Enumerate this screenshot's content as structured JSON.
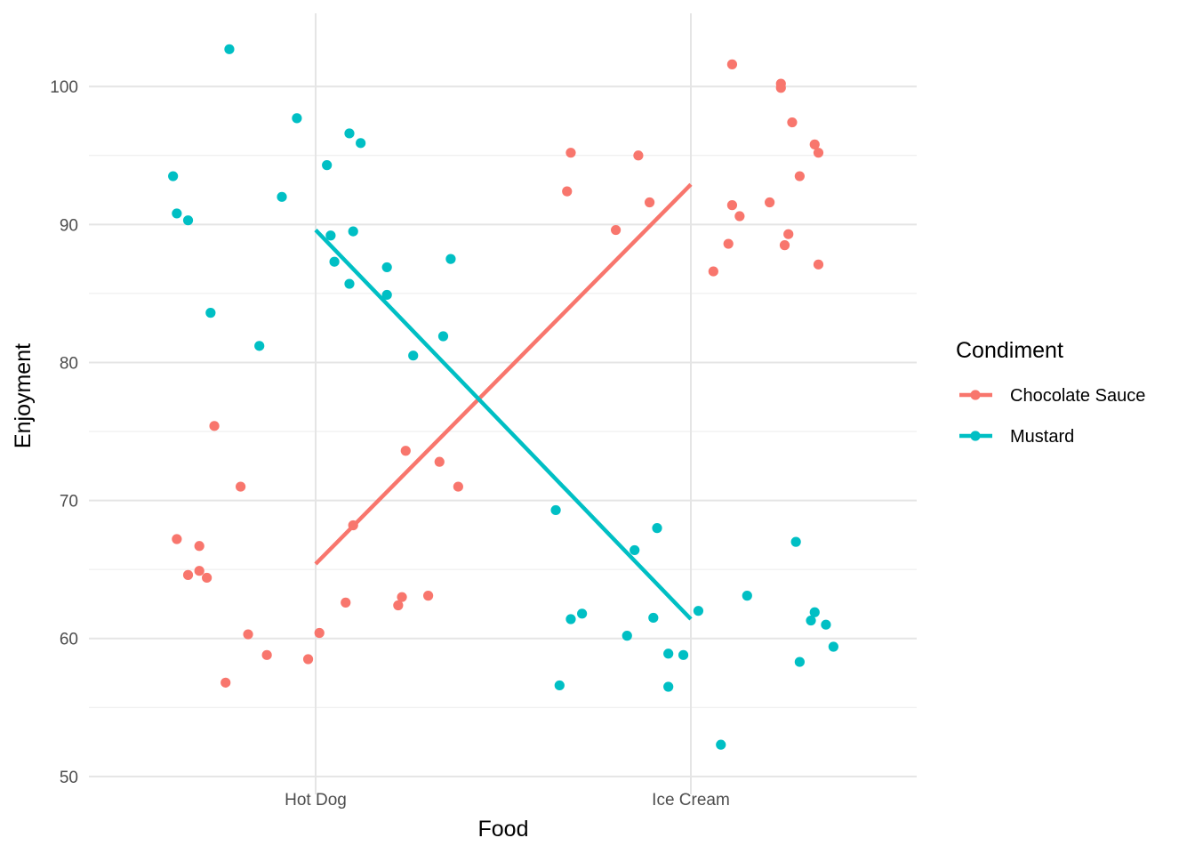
{
  "chart_data": {
    "type": "scatter",
    "xlabel": "Food",
    "ylabel": "Enjoyment",
    "categories": [
      "Hot Dog",
      "Ice Cream"
    ],
    "ylim": [
      48.7,
      105.3
    ],
    "y_ticks": [
      50,
      60,
      70,
      80,
      90,
      100
    ],
    "grid": true,
    "legend": {
      "title": "Condiment",
      "placement": "right"
    },
    "series": [
      {
        "name": "Chocolate Sauce",
        "color": "#F8766D",
        "trend": [
          65.4,
          92.9
        ],
        "points": [
          {
            "x": "Hot Dog",
            "jitter": -0.37,
            "y": 67.2
          },
          {
            "x": "Hot Dog",
            "jitter": -0.34,
            "y": 64.6
          },
          {
            "x": "Hot Dog",
            "jitter": -0.31,
            "y": 66.7
          },
          {
            "x": "Hot Dog",
            "jitter": -0.31,
            "y": 64.9
          },
          {
            "x": "Hot Dog",
            "jitter": -0.29,
            "y": 64.4
          },
          {
            "x": "Hot Dog",
            "jitter": -0.27,
            "y": 75.4
          },
          {
            "x": "Hot Dog",
            "jitter": -0.24,
            "y": 56.8
          },
          {
            "x": "Hot Dog",
            "jitter": -0.2,
            "y": 71.0
          },
          {
            "x": "Hot Dog",
            "jitter": -0.18,
            "y": 60.3
          },
          {
            "x": "Hot Dog",
            "jitter": -0.13,
            "y": 58.8
          },
          {
            "x": "Hot Dog",
            "jitter": -0.02,
            "y": 58.5
          },
          {
            "x": "Hot Dog",
            "jitter": 0.01,
            "y": 60.4
          },
          {
            "x": "Hot Dog",
            "jitter": 0.08,
            "y": 62.6
          },
          {
            "x": "Hot Dog",
            "jitter": 0.1,
            "y": 68.2
          },
          {
            "x": "Hot Dog",
            "jitter": 0.22,
            "y": 62.4
          },
          {
            "x": "Hot Dog",
            "jitter": 0.23,
            "y": 63.0
          },
          {
            "x": "Hot Dog",
            "jitter": 0.24,
            "y": 73.6
          },
          {
            "x": "Hot Dog",
            "jitter": 0.3,
            "y": 63.1
          },
          {
            "x": "Hot Dog",
            "jitter": 0.33,
            "y": 72.8
          },
          {
            "x": "Hot Dog",
            "jitter": 0.38,
            "y": 71.0
          },
          {
            "x": "Ice Cream",
            "jitter": -0.33,
            "y": 92.4
          },
          {
            "x": "Ice Cream",
            "jitter": -0.32,
            "y": 95.2
          },
          {
            "x": "Ice Cream",
            "jitter": -0.2,
            "y": 89.6
          },
          {
            "x": "Ice Cream",
            "jitter": -0.14,
            "y": 95.0
          },
          {
            "x": "Ice Cream",
            "jitter": -0.11,
            "y": 91.6
          },
          {
            "x": "Ice Cream",
            "jitter": 0.06,
            "y": 86.6
          },
          {
            "x": "Ice Cream",
            "jitter": 0.1,
            "y": 88.6
          },
          {
            "x": "Ice Cream",
            "jitter": 0.11,
            "y": 101.6
          },
          {
            "x": "Ice Cream",
            "jitter": 0.11,
            "y": 91.4
          },
          {
            "x": "Ice Cream",
            "jitter": 0.13,
            "y": 90.6
          },
          {
            "x": "Ice Cream",
            "jitter": 0.21,
            "y": 91.6
          },
          {
            "x": "Ice Cream",
            "jitter": 0.24,
            "y": 100.2
          },
          {
            "x": "Ice Cream",
            "jitter": 0.24,
            "y": 99.9
          },
          {
            "x": "Ice Cream",
            "jitter": 0.25,
            "y": 88.5
          },
          {
            "x": "Ice Cream",
            "jitter": 0.26,
            "y": 89.3
          },
          {
            "x": "Ice Cream",
            "jitter": 0.27,
            "y": 97.4
          },
          {
            "x": "Ice Cream",
            "jitter": 0.29,
            "y": 93.5
          },
          {
            "x": "Ice Cream",
            "jitter": 0.33,
            "y": 95.8
          },
          {
            "x": "Ice Cream",
            "jitter": 0.34,
            "y": 87.1
          },
          {
            "x": "Ice Cream",
            "jitter": 0.34,
            "y": 95.2
          }
        ]
      },
      {
        "name": "Mustard",
        "color": "#00BFC4",
        "trend": [
          89.6,
          61.4
        ],
        "points": [
          {
            "x": "Hot Dog",
            "jitter": -0.38,
            "y": 93.5
          },
          {
            "x": "Hot Dog",
            "jitter": -0.37,
            "y": 90.8
          },
          {
            "x": "Hot Dog",
            "jitter": -0.34,
            "y": 90.3
          },
          {
            "x": "Hot Dog",
            "jitter": -0.28,
            "y": 83.6
          },
          {
            "x": "Hot Dog",
            "jitter": -0.23,
            "y": 102.7
          },
          {
            "x": "Hot Dog",
            "jitter": -0.15,
            "y": 81.2
          },
          {
            "x": "Hot Dog",
            "jitter": -0.09,
            "y": 92.0
          },
          {
            "x": "Hot Dog",
            "jitter": -0.05,
            "y": 97.7
          },
          {
            "x": "Hot Dog",
            "jitter": 0.03,
            "y": 94.3
          },
          {
            "x": "Hot Dog",
            "jitter": 0.04,
            "y": 89.2
          },
          {
            "x": "Hot Dog",
            "jitter": 0.05,
            "y": 87.3
          },
          {
            "x": "Hot Dog",
            "jitter": 0.09,
            "y": 85.7
          },
          {
            "x": "Hot Dog",
            "jitter": 0.09,
            "y": 96.6
          },
          {
            "x": "Hot Dog",
            "jitter": 0.1,
            "y": 89.5
          },
          {
            "x": "Hot Dog",
            "jitter": 0.12,
            "y": 95.9
          },
          {
            "x": "Hot Dog",
            "jitter": 0.19,
            "y": 86.9
          },
          {
            "x": "Hot Dog",
            "jitter": 0.19,
            "y": 84.9
          },
          {
            "x": "Hot Dog",
            "jitter": 0.26,
            "y": 80.5
          },
          {
            "x": "Hot Dog",
            "jitter": 0.34,
            "y": 81.9
          },
          {
            "x": "Hot Dog",
            "jitter": 0.36,
            "y": 87.5
          },
          {
            "x": "Ice Cream",
            "jitter": -0.36,
            "y": 69.3
          },
          {
            "x": "Ice Cream",
            "jitter": -0.35,
            "y": 56.6
          },
          {
            "x": "Ice Cream",
            "jitter": -0.32,
            "y": 61.4
          },
          {
            "x": "Ice Cream",
            "jitter": -0.29,
            "y": 61.8
          },
          {
            "x": "Ice Cream",
            "jitter": -0.17,
            "y": 60.2
          },
          {
            "x": "Ice Cream",
            "jitter": -0.15,
            "y": 66.4
          },
          {
            "x": "Ice Cream",
            "jitter": -0.1,
            "y": 61.5
          },
          {
            "x": "Ice Cream",
            "jitter": -0.09,
            "y": 68.0
          },
          {
            "x": "Ice Cream",
            "jitter": -0.06,
            "y": 58.9
          },
          {
            "x": "Ice Cream",
            "jitter": -0.06,
            "y": 56.5
          },
          {
            "x": "Ice Cream",
            "jitter": -0.02,
            "y": 58.8
          },
          {
            "x": "Ice Cream",
            "jitter": 0.02,
            "y": 62.0
          },
          {
            "x": "Ice Cream",
            "jitter": 0.08,
            "y": 52.3
          },
          {
            "x": "Ice Cream",
            "jitter": 0.15,
            "y": 63.1
          },
          {
            "x": "Ice Cream",
            "jitter": 0.28,
            "y": 67.0
          },
          {
            "x": "Ice Cream",
            "jitter": 0.29,
            "y": 58.3
          },
          {
            "x": "Ice Cream",
            "jitter": 0.32,
            "y": 61.3
          },
          {
            "x": "Ice Cream",
            "jitter": 0.33,
            "y": 61.9
          },
          {
            "x": "Ice Cream",
            "jitter": 0.36,
            "y": 61.0
          },
          {
            "x": "Ice Cream",
            "jitter": 0.38,
            "y": 59.4
          }
        ]
      }
    ]
  }
}
